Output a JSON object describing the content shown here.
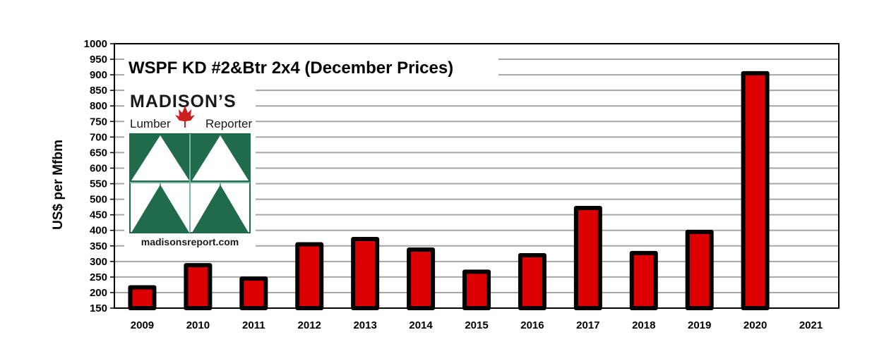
{
  "chart_data": {
    "type": "bar",
    "title": "WSPF KD #2&Btr 2x4 (December Prices)",
    "xlabel": "",
    "ylabel": "US$ per Mfbm",
    "ylim": [
      150,
      1000
    ],
    "yticks": [
      150,
      200,
      250,
      300,
      350,
      400,
      450,
      500,
      550,
      600,
      650,
      700,
      750,
      800,
      850,
      900,
      950,
      1000
    ],
    "grid": true,
    "legend": "none",
    "categories": [
      "2009",
      "2010",
      "2011",
      "2012",
      "2013",
      "2014",
      "2015",
      "2016",
      "2017",
      "2018",
      "2019",
      "2020",
      "2021"
    ],
    "values": [
      217,
      288,
      245,
      355,
      372,
      338,
      267,
      320,
      472,
      327,
      395,
      905,
      null
    ],
    "colors": {
      "bar_fill": "#dd0000",
      "bar_outline": "#000000",
      "grid": "#a6a6a6"
    }
  },
  "logo": {
    "name_line": "MADISON’S",
    "left_word": "Lumber",
    "right_word": "Reporter",
    "url": "madisonsreport.com",
    "colors": {
      "green": "#1f6b4b",
      "maple": "#cc1f1f"
    }
  }
}
